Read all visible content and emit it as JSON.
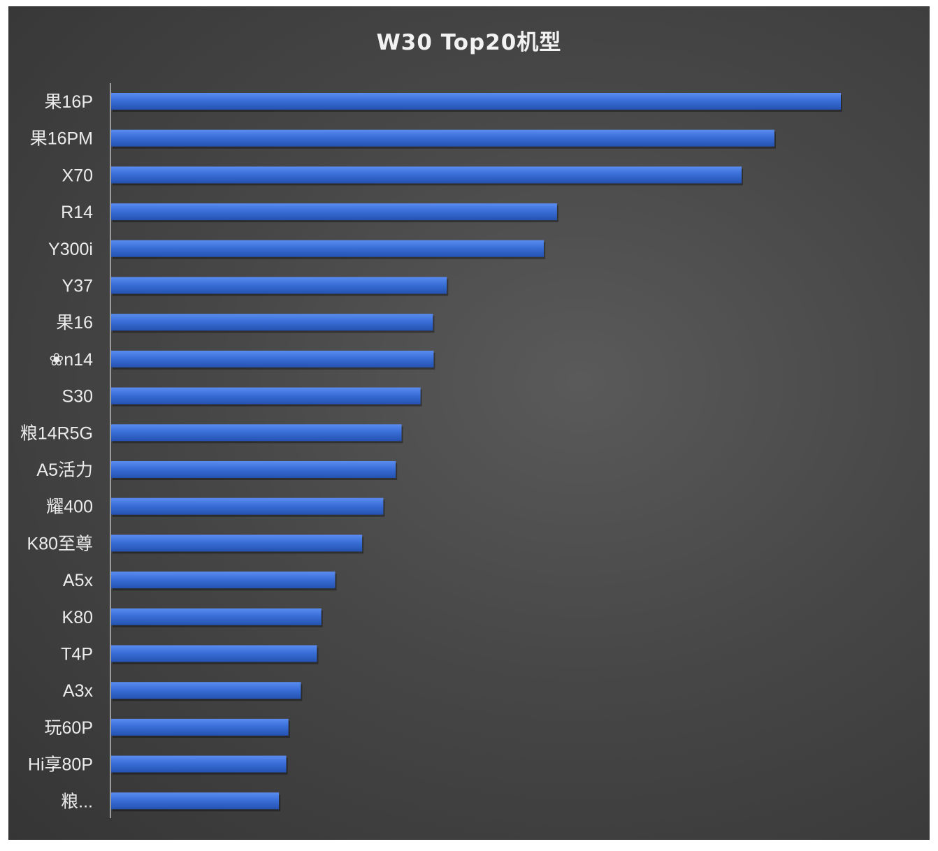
{
  "chart_data": {
    "type": "bar",
    "orientation": "horizontal",
    "title": "W30 Top20机型",
    "xlabel": "",
    "ylabel": "",
    "categories": [
      "果16P",
      "果16PM",
      "X70",
      "R14",
      "Y300i",
      "Y37",
      "果16",
      "❀n14",
      "S30",
      "粮14R5G",
      "A5活力",
      "耀400",
      "K80至尊",
      "A5x",
      "K80",
      "T4P",
      "A3x",
      "玩60P",
      "Hi享80P",
      "粮..."
    ],
    "values": [
      100,
      90.9,
      86.4,
      61.1,
      59.3,
      46.0,
      44.1,
      44.2,
      42.4,
      39.8,
      39.0,
      37.3,
      34.4,
      30.7,
      28.8,
      28.2,
      26.0,
      24.3,
      24.0,
      23.0
    ],
    "xlim": [
      0,
      100
    ],
    "grid": false,
    "legend": "none",
    "bar_color": "#3a6fd8"
  }
}
